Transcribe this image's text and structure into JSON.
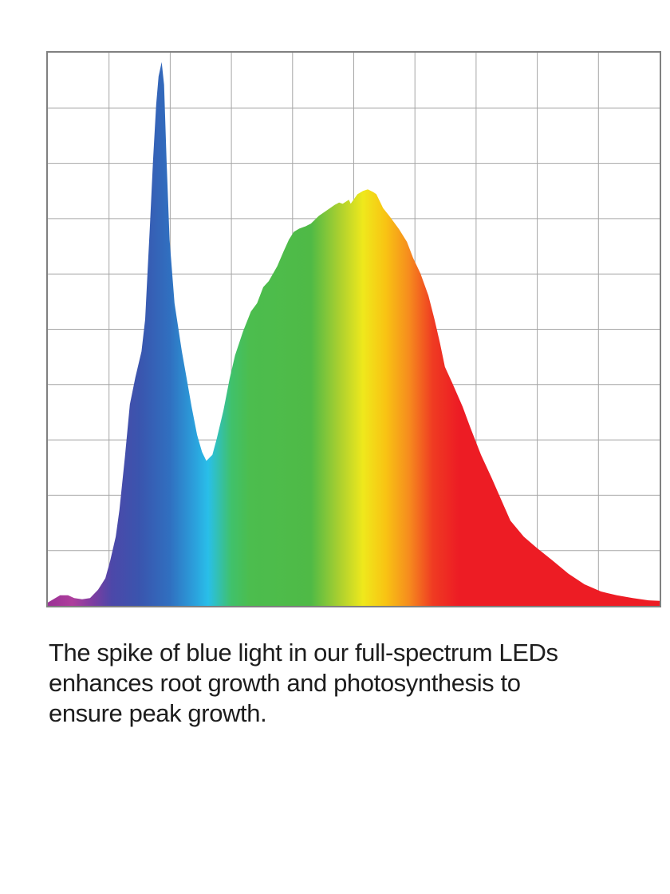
{
  "page": {
    "background_color": "#ffffff"
  },
  "chart_data": {
    "type": "area",
    "title": "",
    "xlabel": "",
    "ylabel": "",
    "x_axis_tick_labels": [],
    "y_axis_tick_labels": [],
    "legend": "none",
    "grid": {
      "visible": true,
      "columns": 10,
      "rows": 10,
      "line_color": "#a6a6a6",
      "border_color": "#808080"
    },
    "description": "Spectral power distribution of a full-spectrum LED. Area fill is a horizontal rainbow gradient (violet to red). Sharp narrow blue spike reaching ~98% intensity at ~18.6% of the x-range, a dip to ~26%, then a broad green-yellow hump peaking ~75% at ~52% of the x-range, tapering through orange/red to near zero at the right edge. Axes are unlabeled.",
    "x_unit": "percent of x-axis (wavelength, unlabeled)",
    "y_unit": "percent of y-axis (relative intensity, unlabeled)",
    "series": [
      {
        "name": "LED spectral intensity",
        "points": [
          [
            0,
            0.6
          ],
          [
            0.9,
            1.2
          ],
          [
            2,
            1.9
          ],
          [
            3.3,
            1.9
          ],
          [
            4.3,
            1.4
          ],
          [
            5.6,
            1.2
          ],
          [
            6.9,
            1.4
          ],
          [
            8.2,
            2.9
          ],
          [
            9.4,
            5
          ],
          [
            10.2,
            8.2
          ],
          [
            11.1,
            12.5
          ],
          [
            11.7,
            17.3
          ],
          [
            12.6,
            26.9
          ],
          [
            13.4,
            36.4
          ],
          [
            14.3,
            41.3
          ],
          [
            15.3,
            46
          ],
          [
            15.9,
            51.8
          ],
          [
            16.3,
            60.4
          ],
          [
            16.7,
            69.1
          ],
          [
            17.2,
            80.6
          ],
          [
            17.7,
            90.6
          ],
          [
            18.1,
            95.7
          ],
          [
            18.6,
            98.3
          ],
          [
            19,
            94.2
          ],
          [
            19.4,
            80.6
          ],
          [
            19.9,
            66.2
          ],
          [
            20.7,
            54.7
          ],
          [
            21.9,
            46
          ],
          [
            22.6,
            41.7
          ],
          [
            23.5,
            36
          ],
          [
            24.4,
            30.9
          ],
          [
            25.2,
            27.8
          ],
          [
            25.9,
            26.2
          ],
          [
            26.9,
            27.3
          ],
          [
            27.6,
            30.2
          ],
          [
            28.7,
            35.3
          ],
          [
            29.7,
            41
          ],
          [
            30.6,
            45.3
          ],
          [
            31.9,
            49.6
          ],
          [
            33.2,
            53.2
          ],
          [
            34.2,
            54.7
          ],
          [
            35.2,
            57.6
          ],
          [
            36.1,
            58.7
          ],
          [
            37.5,
            61.4
          ],
          [
            38.5,
            64
          ],
          [
            39.4,
            66.2
          ],
          [
            40.2,
            67.6
          ],
          [
            41.1,
            68.2
          ],
          [
            42.1,
            68.6
          ],
          [
            43,
            69.1
          ],
          [
            44.3,
            70.5
          ],
          [
            45.6,
            71.5
          ],
          [
            46.9,
            72.5
          ],
          [
            47.6,
            72.9
          ],
          [
            48.2,
            72.7
          ],
          [
            49.2,
            73.4
          ],
          [
            49.5,
            72.7
          ],
          [
            50.6,
            74.4
          ],
          [
            51.5,
            75
          ],
          [
            52.3,
            75.3
          ],
          [
            53.2,
            74.8
          ],
          [
            53.7,
            74.4
          ],
          [
            54.8,
            71.9
          ],
          [
            55.8,
            70.5
          ],
          [
            57.4,
            68.1
          ],
          [
            58.7,
            65.8
          ],
          [
            59.7,
            62.9
          ],
          [
            60.9,
            60.1
          ],
          [
            62.2,
            56.1
          ],
          [
            63.2,
            51.8
          ],
          [
            64.1,
            47.5
          ],
          [
            64.9,
            43.2
          ],
          [
            66.1,
            40.3
          ],
          [
            67.8,
            36
          ],
          [
            69.1,
            32.1
          ],
          [
            70.8,
            27.3
          ],
          [
            72.6,
            23
          ],
          [
            73.9,
            19.7
          ],
          [
            75.6,
            15.4
          ],
          [
            77.8,
            12.5
          ],
          [
            79.9,
            10.5
          ],
          [
            82.5,
            8.2
          ],
          [
            85.1,
            5.8
          ],
          [
            87.7,
            3.9
          ],
          [
            90.4,
            2.6
          ],
          [
            93,
            1.9
          ],
          [
            95.6,
            1.4
          ],
          [
            98.2,
            1
          ],
          [
            100,
            0.9
          ]
        ]
      }
    ],
    "gradient_stops": [
      {
        "offset": 0.0,
        "color": "#9a3295"
      },
      {
        "offset": 0.04,
        "color": "#ae3e9c"
      },
      {
        "offset": 0.075,
        "color": "#7b3da1"
      },
      {
        "offset": 0.105,
        "color": "#4c48a9"
      },
      {
        "offset": 0.15,
        "color": "#3a55ae"
      },
      {
        "offset": 0.2,
        "color": "#3070c0"
      },
      {
        "offset": 0.24,
        "color": "#2ba0dc"
      },
      {
        "offset": 0.262,
        "color": "#29bfe9"
      },
      {
        "offset": 0.3,
        "color": "#40c16b"
      },
      {
        "offset": 0.33,
        "color": "#4cbd4e"
      },
      {
        "offset": 0.43,
        "color": "#4fba46"
      },
      {
        "offset": 0.475,
        "color": "#a8cf30"
      },
      {
        "offset": 0.515,
        "color": "#efe81c"
      },
      {
        "offset": 0.552,
        "color": "#f8c413"
      },
      {
        "offset": 0.59,
        "color": "#f68c1e"
      },
      {
        "offset": 0.63,
        "color": "#ef3a22"
      },
      {
        "offset": 0.672,
        "color": "#ed1c24"
      },
      {
        "offset": 1.0,
        "color": "#ed1c24"
      }
    ]
  },
  "caption": {
    "color": "#1d1d1d",
    "lines": [
      "The spike of blue light in our full-spectrum LEDs",
      "enhances root growth and photosynthesis to",
      "ensure peak growth."
    ]
  }
}
